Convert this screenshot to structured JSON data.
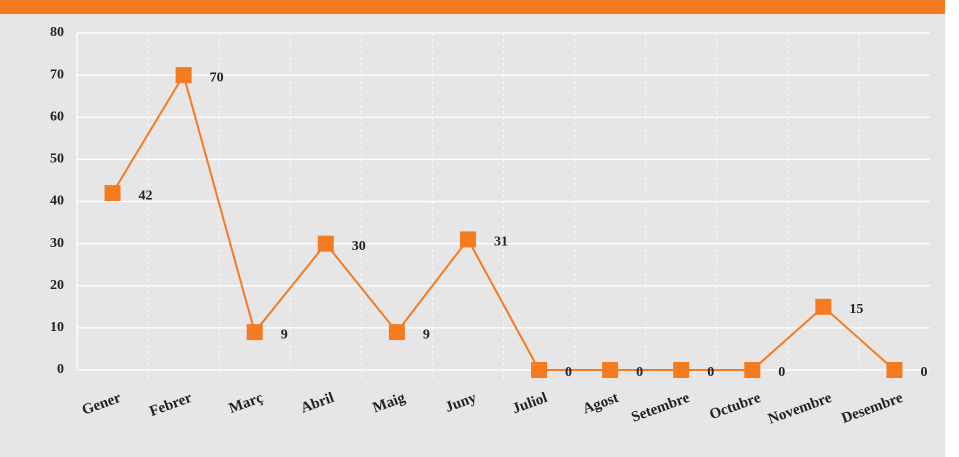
{
  "chart_data": {
    "type": "line",
    "categories": [
      "Gener",
      "Febrer",
      "Març",
      "Abril",
      "Maig",
      "Juny",
      "Juliol",
      "Agost",
      "Setembre",
      "Octubre",
      "Novembre",
      "Desembre"
    ],
    "series": [
      {
        "color": "#f47b20",
        "values": [
          42,
          70,
          9,
          30,
          9,
          31,
          0,
          0,
          0,
          0,
          15,
          0
        ]
      }
    ],
    "ylim": [
      0,
      80
    ],
    "yticks": [
      0,
      10,
      20,
      30,
      40,
      50,
      60,
      70,
      80
    ],
    "grid": true
  }
}
